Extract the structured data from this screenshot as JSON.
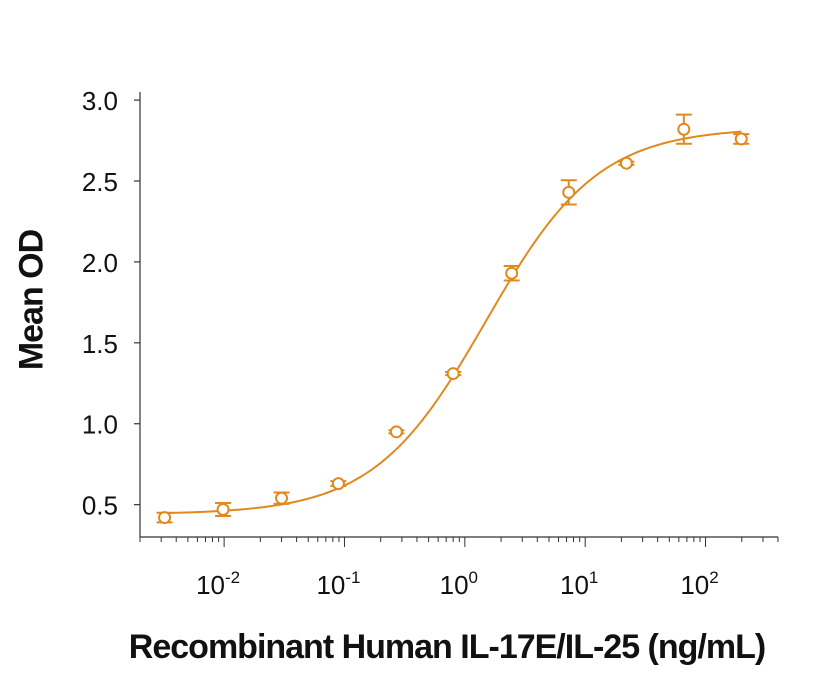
{
  "chart_data": {
    "type": "scatter",
    "title": "",
    "xlabel": "Recombinant Human IL-17E/IL-25 (ng/mL)",
    "ylabel": "Mean OD",
    "x_scale": "log",
    "xlim": [
      0.002,
      400
    ],
    "ylim": [
      0.3,
      3.05
    ],
    "y_ticks": [
      {
        "value": 0.5,
        "label": "0.5"
      },
      {
        "value": 1.0,
        "label": "1.0"
      },
      {
        "value": 1.5,
        "label": "1.5"
      },
      {
        "value": 2.0,
        "label": "2.0"
      },
      {
        "value": 2.5,
        "label": "2.5"
      },
      {
        "value": 3.0,
        "label": "3.0"
      }
    ],
    "x_ticks": [
      {
        "value": 0.01,
        "base": "10",
        "exp": "-2"
      },
      {
        "value": 0.1,
        "base": "10",
        "exp": "-1"
      },
      {
        "value": 1,
        "base": "10",
        "exp": "0"
      },
      {
        "value": 10,
        "base": "10",
        "exp": "1"
      },
      {
        "value": 100,
        "base": "10",
        "exp": "2"
      }
    ],
    "grid": false,
    "series_color": "#E08A1E",
    "points": [
      {
        "x": 0.0032,
        "y": 0.42,
        "err": 0.03
      },
      {
        "x": 0.0098,
        "y": 0.47,
        "err": 0.04
      },
      {
        "x": 0.03,
        "y": 0.54,
        "err": 0.035
      },
      {
        "x": 0.089,
        "y": 0.63,
        "err": 0.015
      },
      {
        "x": 0.27,
        "y": 0.95,
        "err": 0.01
      },
      {
        "x": 0.8,
        "y": 1.31,
        "err": 0.01
      },
      {
        "x": 2.45,
        "y": 1.93,
        "err": 0.045
      },
      {
        "x": 7.3,
        "y": 2.43,
        "err": 0.075
      },
      {
        "x": 22,
        "y": 2.61,
        "err": 0.01
      },
      {
        "x": 66,
        "y": 2.82,
        "err": 0.09
      },
      {
        "x": 198,
        "y": 2.76,
        "err": 0.03
      }
    ],
    "fit_curve": {
      "model": "4PL",
      "bottom": 0.44,
      "top": 2.83,
      "ec50": 1.5,
      "hill": 0.93
    }
  }
}
